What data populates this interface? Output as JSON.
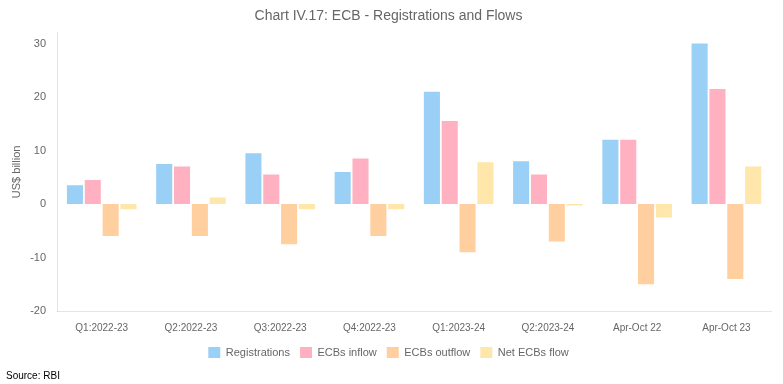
{
  "chart_data": {
    "type": "bar",
    "title": "Chart IV.17: ECB - Registrations and Flows",
    "ylabel": "US$ billion",
    "annotations": [
      "Source: RBI"
    ],
    "categories": [
      "Q1:2022-23",
      "Q2:2022-23",
      "Q3:2022-23",
      "Q4:2022-23",
      "Q1:2023-24",
      "Q2:2023-24",
      "Apr-Oct 22",
      "Apr-Oct 23"
    ],
    "series": [
      {
        "name": "Registrations",
        "values": [
          3.5,
          7.5,
          9.5,
          6.0,
          21.0,
          8.0,
          12.0,
          30.0
        ]
      },
      {
        "name": "ECBs inflow",
        "values": [
          4.5,
          7.0,
          5.5,
          8.5,
          15.5,
          5.5,
          12.0,
          21.5
        ]
      },
      {
        "name": "ECBs outflow",
        "values": [
          -6.0,
          -6.0,
          -7.5,
          -6.0,
          -9.0,
          -7.0,
          -15.0,
          -14.0
        ]
      },
      {
        "name": "Net ECBs flow",
        "values": [
          -1.0,
          1.2,
          -1.0,
          -1.0,
          7.8,
          -0.3,
          -2.5,
          7.0
        ]
      }
    ],
    "ylim": [
      -20,
      32
    ],
    "yticks": [
      -20,
      -10,
      0,
      10,
      20,
      30
    ],
    "grid": false,
    "legend": "bottom"
  }
}
